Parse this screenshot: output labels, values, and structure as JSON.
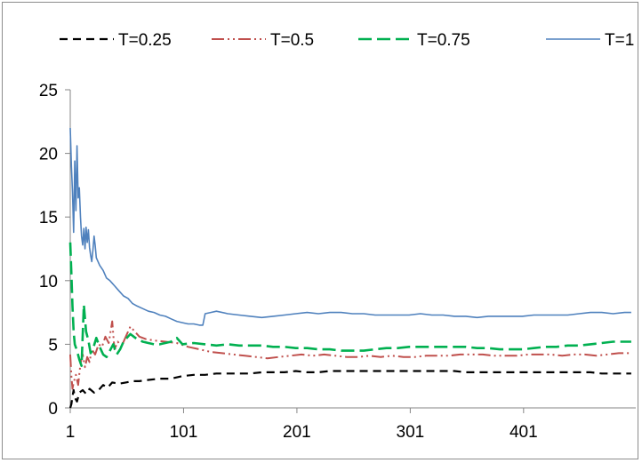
{
  "chart_data": {
    "type": "line",
    "title": "",
    "xlabel": "",
    "ylabel": "",
    "legend_position": "top",
    "grid": false,
    "ylim": [
      0,
      25
    ],
    "xlim": [
      1,
      500
    ],
    "y_ticks": [
      0,
      5,
      10,
      15,
      20,
      25
    ],
    "x_ticks": [
      1,
      101,
      201,
      301,
      401
    ],
    "series": [
      {
        "name": "T=0.25",
        "color": "#000000",
        "dash": "9,6",
        "width": 2.2,
        "points": [
          [
            1,
            0
          ],
          [
            2,
            0.3
          ],
          [
            3,
            0.9
          ],
          [
            4,
            1.4
          ],
          [
            5,
            0.8
          ],
          [
            7,
            0.5
          ],
          [
            9,
            1.2
          ],
          [
            12,
            1.4
          ],
          [
            15,
            1.1
          ],
          [
            18,
            1.5
          ],
          [
            22,
            1.2
          ],
          [
            26,
            1.4
          ],
          [
            30,
            1.8
          ],
          [
            34,
            1.6
          ],
          [
            38,
            2.0
          ],
          [
            44,
            1.9
          ],
          [
            50,
            2.0
          ],
          [
            56,
            2.1
          ],
          [
            62,
            2.1
          ],
          [
            70,
            2.2
          ],
          [
            80,
            2.3
          ],
          [
            90,
            2.3
          ],
          [
            100,
            2.5
          ],
          [
            110,
            2.6
          ],
          [
            120,
            2.6
          ],
          [
            130,
            2.7
          ],
          [
            140,
            2.7
          ],
          [
            150,
            2.7
          ],
          [
            160,
            2.7
          ],
          [
            170,
            2.8
          ],
          [
            180,
            2.8
          ],
          [
            190,
            2.8
          ],
          [
            200,
            2.9
          ],
          [
            210,
            2.8
          ],
          [
            220,
            2.8
          ],
          [
            230,
            2.9
          ],
          [
            240,
            2.9
          ],
          [
            250,
            2.9
          ],
          [
            260,
            2.9
          ],
          [
            270,
            2.9
          ],
          [
            280,
            2.9
          ],
          [
            290,
            2.9
          ],
          [
            300,
            2.9
          ],
          [
            310,
            2.9
          ],
          [
            320,
            2.9
          ],
          [
            330,
            2.9
          ],
          [
            340,
            2.9
          ],
          [
            350,
            2.8
          ],
          [
            360,
            2.8
          ],
          [
            370,
            2.8
          ],
          [
            380,
            2.8
          ],
          [
            390,
            2.8
          ],
          [
            400,
            2.8
          ],
          [
            410,
            2.8
          ],
          [
            420,
            2.8
          ],
          [
            430,
            2.8
          ],
          [
            440,
            2.8
          ],
          [
            450,
            2.8
          ],
          [
            460,
            2.8
          ],
          [
            470,
            2.7
          ],
          [
            480,
            2.7
          ],
          [
            490,
            2.7
          ],
          [
            496,
            2.7
          ]
        ]
      },
      {
        "name": "T=0.5",
        "color": "#c0504d",
        "dash": "14,4,2,4,2,4",
        "width": 2,
        "points": [
          [
            1,
            4.2
          ],
          [
            2,
            2.5
          ],
          [
            3,
            1.5
          ],
          [
            4,
            2.0
          ],
          [
            6,
            2.6
          ],
          [
            8,
            1.8
          ],
          [
            10,
            3.5
          ],
          [
            12,
            4.2
          ],
          [
            14,
            3.2
          ],
          [
            16,
            4.0
          ],
          [
            18,
            3.6
          ],
          [
            20,
            4.6
          ],
          [
            23,
            4.2
          ],
          [
            26,
            5.0
          ],
          [
            29,
            4.8
          ],
          [
            32,
            5.6
          ],
          [
            35,
            5.1
          ],
          [
            38,
            6.8
          ],
          [
            40,
            4.6
          ],
          [
            43,
            5.2
          ],
          [
            46,
            4.8
          ],
          [
            50,
            5.6
          ],
          [
            54,
            6.4
          ],
          [
            58,
            6.0
          ],
          [
            62,
            5.6
          ],
          [
            68,
            5.4
          ],
          [
            75,
            5.3
          ],
          [
            85,
            5.2
          ],
          [
            95,
            5.1
          ],
          [
            105,
            4.8
          ],
          [
            115,
            4.6
          ],
          [
            125,
            4.4
          ],
          [
            135,
            4.3
          ],
          [
            145,
            4.2
          ],
          [
            155,
            4.1
          ],
          [
            165,
            4.0
          ],
          [
            175,
            3.9
          ],
          [
            185,
            4.0
          ],
          [
            195,
            4.1
          ],
          [
            205,
            4.2
          ],
          [
            215,
            4.1
          ],
          [
            225,
            4.2
          ],
          [
            235,
            4.1
          ],
          [
            245,
            4.0
          ],
          [
            255,
            4.0
          ],
          [
            265,
            4.1
          ],
          [
            275,
            4.0
          ],
          [
            285,
            4.1
          ],
          [
            295,
            4.0
          ],
          [
            305,
            4.0
          ],
          [
            315,
            4.1
          ],
          [
            325,
            4.1
          ],
          [
            335,
            4.1
          ],
          [
            345,
            4.2
          ],
          [
            355,
            4.2
          ],
          [
            365,
            4.2
          ],
          [
            375,
            4.1
          ],
          [
            385,
            4.1
          ],
          [
            395,
            4.1
          ],
          [
            405,
            4.2
          ],
          [
            415,
            4.2
          ],
          [
            425,
            4.2
          ],
          [
            435,
            4.1
          ],
          [
            445,
            4.2
          ],
          [
            455,
            4.2
          ],
          [
            465,
            4.1
          ],
          [
            475,
            4.2
          ],
          [
            485,
            4.3
          ],
          [
            496,
            4.3
          ]
        ]
      },
      {
        "name": "T=0.75",
        "color": "#00b050",
        "dash": "15,6",
        "width": 2.6,
        "points": [
          [
            1,
            13.0
          ],
          [
            2,
            10.5
          ],
          [
            3,
            8.0
          ],
          [
            4,
            6.0
          ],
          [
            5,
            5.0
          ],
          [
            7,
            4.5
          ],
          [
            9,
            3.8
          ],
          [
            11,
            3.3
          ],
          [
            13,
            8.1
          ],
          [
            15,
            6.0
          ],
          [
            17,
            5.3
          ],
          [
            19,
            4.3
          ],
          [
            21,
            4.6
          ],
          [
            24,
            5.5
          ],
          [
            27,
            4.8
          ],
          [
            30,
            4.2
          ],
          [
            33,
            4.0
          ],
          [
            36,
            4.5
          ],
          [
            39,
            5.0
          ],
          [
            42,
            4.2
          ],
          [
            45,
            4.6
          ],
          [
            48,
            5.2
          ],
          [
            51,
            5.5
          ],
          [
            54,
            5.8
          ],
          [
            57,
            5.6
          ],
          [
            60,
            5.4
          ],
          [
            65,
            5.2
          ],
          [
            70,
            5.1
          ],
          [
            75,
            5.0
          ],
          [
            80,
            5.0
          ],
          [
            90,
            5.2
          ],
          [
            95,
            5.5
          ],
          [
            100,
            5.0
          ],
          [
            110,
            5.1
          ],
          [
            120,
            5.0
          ],
          [
            130,
            4.9
          ],
          [
            140,
            5.0
          ],
          [
            150,
            4.9
          ],
          [
            160,
            4.9
          ],
          [
            170,
            4.9
          ],
          [
            180,
            4.8
          ],
          [
            190,
            4.8
          ],
          [
            200,
            4.7
          ],
          [
            210,
            4.7
          ],
          [
            220,
            4.6
          ],
          [
            230,
            4.6
          ],
          [
            240,
            4.5
          ],
          [
            250,
            4.5
          ],
          [
            260,
            4.5
          ],
          [
            270,
            4.6
          ],
          [
            280,
            4.7
          ],
          [
            290,
            4.7
          ],
          [
            300,
            4.8
          ],
          [
            310,
            4.8
          ],
          [
            320,
            4.8
          ],
          [
            330,
            4.8
          ],
          [
            340,
            4.8
          ],
          [
            350,
            4.8
          ],
          [
            360,
            4.7
          ],
          [
            370,
            4.7
          ],
          [
            380,
            4.6
          ],
          [
            390,
            4.6
          ],
          [
            400,
            4.6
          ],
          [
            410,
            4.7
          ],
          [
            420,
            4.8
          ],
          [
            430,
            4.8
          ],
          [
            440,
            4.9
          ],
          [
            450,
            4.9
          ],
          [
            460,
            5.0
          ],
          [
            470,
            5.1
          ],
          [
            480,
            5.2
          ],
          [
            490,
            5.2
          ],
          [
            496,
            5.2
          ]
        ]
      },
      {
        "name": "T=1",
        "color": "#4f81bd",
        "dash": "",
        "width": 1.6,
        "points": [
          [
            1,
            22.0
          ],
          [
            2,
            19.0
          ],
          [
            3,
            17.0
          ],
          [
            4,
            13.8
          ],
          [
            5,
            19.4
          ],
          [
            6,
            15.5
          ],
          [
            7,
            20.6
          ],
          [
            8,
            16.5
          ],
          [
            9,
            17.3
          ],
          [
            10,
            15.0
          ],
          [
            11,
            13.5
          ],
          [
            12,
            12.8
          ],
          [
            13,
            14.1
          ],
          [
            14,
            12.5
          ],
          [
            15,
            14.2
          ],
          [
            16,
            13.0
          ],
          [
            17,
            14.0
          ],
          [
            18,
            12.6
          ],
          [
            19,
            12.0
          ],
          [
            20,
            11.5
          ],
          [
            21,
            12.4
          ],
          [
            22,
            13.5
          ],
          [
            23,
            12.8
          ],
          [
            24,
            11.8
          ],
          [
            25,
            11.6
          ],
          [
            27,
            11.2
          ],
          [
            30,
            10.8
          ],
          [
            33,
            10.2
          ],
          [
            36,
            10.0
          ],
          [
            40,
            9.6
          ],
          [
            44,
            9.2
          ],
          [
            48,
            8.8
          ],
          [
            52,
            8.6
          ],
          [
            56,
            8.2
          ],
          [
            60,
            8.0
          ],
          [
            65,
            7.8
          ],
          [
            70,
            7.6
          ],
          [
            75,
            7.5
          ],
          [
            80,
            7.3
          ],
          [
            85,
            7.2
          ],
          [
            90,
            7.0
          ],
          [
            95,
            6.8
          ],
          [
            100,
            6.7
          ],
          [
            105,
            6.6
          ],
          [
            110,
            6.6
          ],
          [
            115,
            6.5
          ],
          [
            118,
            6.5
          ],
          [
            120,
            7.4
          ],
          [
            125,
            7.5
          ],
          [
            130,
            7.6
          ],
          [
            140,
            7.4
          ],
          [
            150,
            7.3
          ],
          [
            160,
            7.2
          ],
          [
            170,
            7.1
          ],
          [
            180,
            7.2
          ],
          [
            190,
            7.3
          ],
          [
            200,
            7.4
          ],
          [
            210,
            7.5
          ],
          [
            220,
            7.4
          ],
          [
            230,
            7.5
          ],
          [
            240,
            7.5
          ],
          [
            250,
            7.4
          ],
          [
            260,
            7.4
          ],
          [
            270,
            7.3
          ],
          [
            280,
            7.3
          ],
          [
            290,
            7.3
          ],
          [
            300,
            7.3
          ],
          [
            310,
            7.4
          ],
          [
            320,
            7.3
          ],
          [
            330,
            7.3
          ],
          [
            340,
            7.2
          ],
          [
            350,
            7.2
          ],
          [
            360,
            7.1
          ],
          [
            370,
            7.2
          ],
          [
            380,
            7.2
          ],
          [
            390,
            7.2
          ],
          [
            400,
            7.2
          ],
          [
            410,
            7.3
          ],
          [
            420,
            7.3
          ],
          [
            430,
            7.3
          ],
          [
            440,
            7.3
          ],
          [
            450,
            7.4
          ],
          [
            460,
            7.5
          ],
          [
            470,
            7.5
          ],
          [
            480,
            7.4
          ],
          [
            490,
            7.5
          ],
          [
            496,
            7.5
          ]
        ]
      }
    ]
  }
}
